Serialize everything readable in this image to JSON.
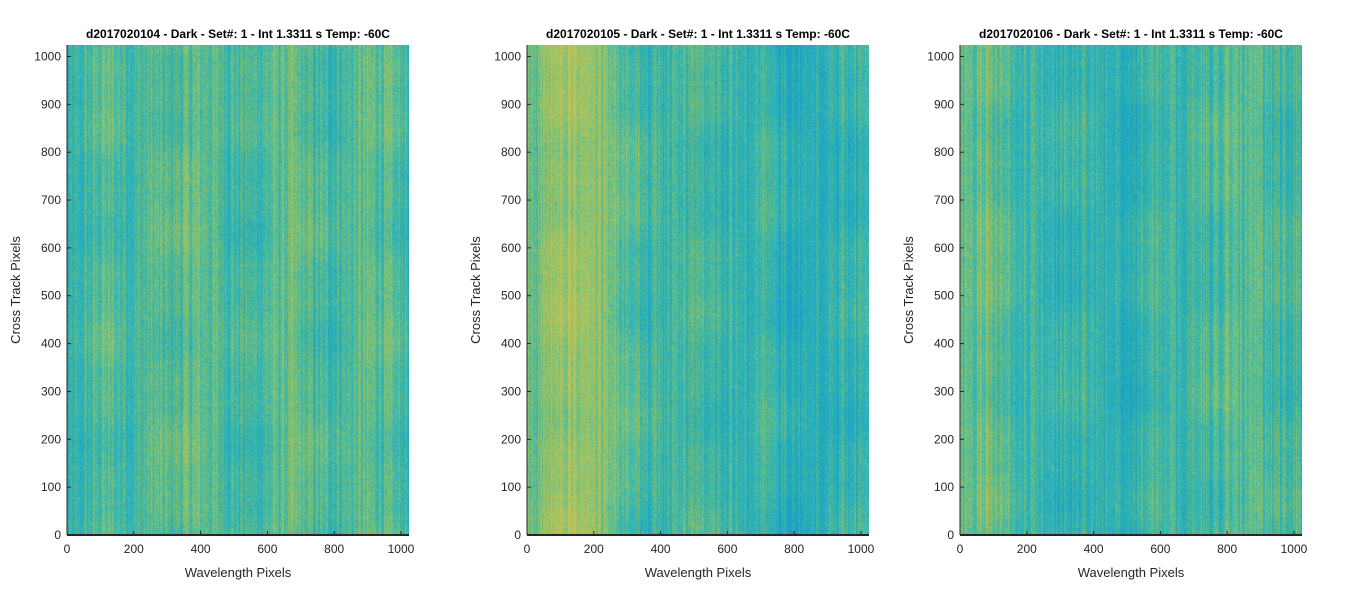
{
  "chart_data": [
    {
      "type": "heatmap",
      "title": "d2017020104 - Dark - Set#: 1 - Int 1.3311 s Temp: -60C",
      "xlabel": "Wavelength Pixels",
      "ylabel": "Cross Track Pixels",
      "xlim": [
        0,
        1024
      ],
      "ylim": [
        0,
        1024
      ],
      "xticks": [
        0,
        200,
        400,
        600,
        800,
        1000
      ],
      "yticks": [
        0,
        100,
        200,
        300,
        400,
        500,
        600,
        700,
        800,
        900,
        1000
      ],
      "colormap": [
        "#1f8fd1",
        "#1aa8c4",
        "#3db7a8",
        "#8cc36a",
        "#c7c153"
      ],
      "column_profile": [
        0.35,
        0.45,
        0.6,
        0.55,
        0.5,
        0.58,
        0.52,
        0.6,
        0.62,
        0.55,
        0.5,
        0.48,
        0.58,
        0.62,
        0.55,
        0.5,
        0.52,
        0.58,
        0.6,
        0.55,
        0.5
      ]
    },
    {
      "type": "heatmap",
      "title": "d2017020105 - Dark - Set#: 1 - Int 1.3311 s Temp: -60C",
      "xlabel": "Wavelength Pixels",
      "ylabel": "Cross Track Pixels",
      "xlim": [
        0,
        1024
      ],
      "ylim": [
        0,
        1024
      ],
      "xticks": [
        0,
        200,
        400,
        600,
        800,
        1000
      ],
      "yticks": [
        0,
        100,
        200,
        300,
        400,
        500,
        600,
        700,
        800,
        900,
        1000
      ],
      "colormap": [
        "#1f8fd1",
        "#1aa8c4",
        "#3db7a8",
        "#8cc36a",
        "#c7c153"
      ],
      "column_profile": [
        0.6,
        0.72,
        0.8,
        0.82,
        0.75,
        0.65,
        0.55,
        0.5,
        0.45,
        0.48,
        0.5,
        0.45,
        0.42,
        0.48,
        0.45,
        0.35,
        0.3,
        0.35,
        0.4,
        0.42,
        0.45
      ]
    },
    {
      "type": "heatmap",
      "title": "d2017020106 - Dark - Set#: 1 - Int 1.3311 s Temp: -60C",
      "xlabel": "Wavelength Pixels",
      "ylabel": "Cross Track Pixels",
      "xlim": [
        0,
        1024
      ],
      "ylim": [
        0,
        1024
      ],
      "xticks": [
        0,
        200,
        400,
        600,
        800,
        1000
      ],
      "yticks": [
        0,
        100,
        200,
        300,
        400,
        500,
        600,
        700,
        800,
        900,
        1000
      ],
      "colormap": [
        "#1f8fd1",
        "#1aa8c4",
        "#3db7a8",
        "#8cc36a",
        "#c7c153"
      ],
      "column_profile": [
        0.62,
        0.65,
        0.6,
        0.52,
        0.48,
        0.45,
        0.42,
        0.45,
        0.42,
        0.4,
        0.42,
        0.45,
        0.48,
        0.45,
        0.5,
        0.55,
        0.6,
        0.55,
        0.5,
        0.48,
        0.5
      ]
    }
  ]
}
